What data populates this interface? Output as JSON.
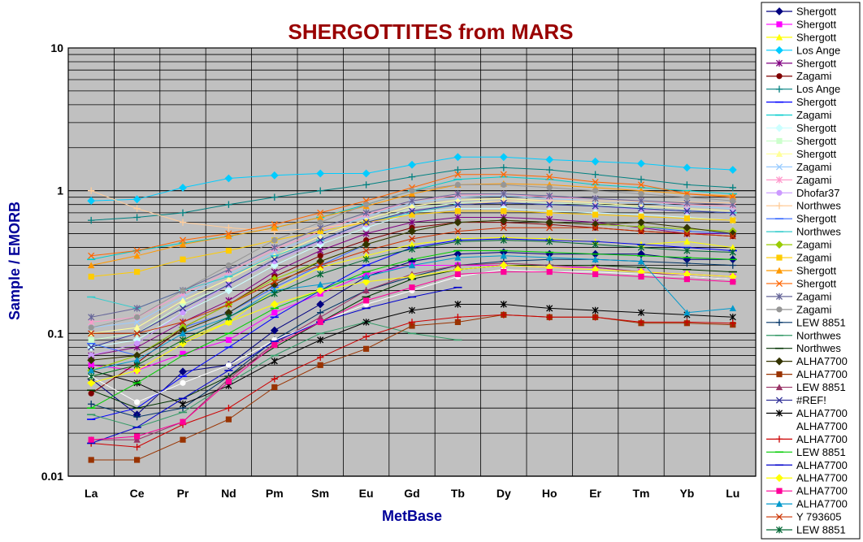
{
  "chart_data": {
    "type": "line",
    "title": "SHERGOTTITES from MARS",
    "xlabel": "MetBase",
    "ylabel": "Sample / EMORB",
    "yscale": "log",
    "ylim": [
      0.01,
      10
    ],
    "yticks": [
      "10",
      "1",
      "0.1",
      "0.01"
    ],
    "grid": true,
    "legend_position": "right",
    "categories": [
      "La",
      "Ce",
      "Pr",
      "Nd",
      "Pm",
      "Sm",
      "Eu",
      "Gd",
      "Tb",
      "Dy",
      "Ho",
      "Er",
      "Tm",
      "Yb",
      "Lu"
    ],
    "series": [
      {
        "name": "Shergott",
        "color": "#000080",
        "marker": "diamond",
        "values": [
          0.048,
          0.027,
          0.054,
          0.06,
          0.105,
          0.16,
          0.25,
          0.32,
          0.36,
          0.37,
          0.36,
          0.36,
          0.36,
          0.33,
          0.33
        ]
      },
      {
        "name": "Shergott",
        "color": "#ff00ff",
        "marker": "square",
        "values": [
          0.06,
          0.055,
          0.072,
          0.09,
          0.14,
          0.19,
          0.26,
          0.3,
          0.3,
          0.3,
          0.29,
          0.29,
          0.27,
          0.26,
          0.25
        ]
      },
      {
        "name": "Shergott",
        "color": "#ffff00",
        "marker": "triangle",
        "values": [
          0.05,
          0.06,
          0.09,
          0.12,
          0.2,
          0.29,
          0.35,
          0.42,
          0.46,
          0.47,
          0.46,
          0.44,
          0.42,
          0.44,
          0.4
        ]
      },
      {
        "name": "Los Ange",
        "color": "#00ccff",
        "marker": "diamond",
        "values": [
          0.85,
          0.87,
          1.05,
          1.22,
          1.28,
          1.32,
          1.32,
          1.52,
          1.72,
          1.72,
          1.65,
          1.6,
          1.55,
          1.45,
          1.4
        ]
      },
      {
        "name": "Shergott",
        "color": "#800080",
        "marker": "star",
        "values": [
          0.07,
          0.08,
          0.12,
          0.17,
          0.27,
          0.38,
          0.5,
          0.6,
          0.65,
          0.65,
          0.63,
          0.6,
          0.55,
          0.5,
          0.5
        ]
      },
      {
        "name": "Zagami",
        "color": "#800000",
        "marker": "circle",
        "values": [
          0.038,
          0.062,
          0.11,
          0.16,
          0.25,
          0.35,
          0.45,
          0.55,
          0.6,
          0.6,
          0.58,
          0.55,
          0.52,
          0.5,
          0.48
        ]
      },
      {
        "name": "Los Ange",
        "color": "#008080",
        "marker": "plus",
        "values": [
          0.62,
          0.65,
          0.7,
          0.8,
          0.9,
          1.0,
          1.1,
          1.25,
          1.4,
          1.45,
          1.4,
          1.3,
          1.2,
          1.1,
          1.05
        ]
      },
      {
        "name": "Shergott",
        "color": "#0000ff",
        "marker": "dash",
        "values": [
          0.025,
          0.03,
          0.05,
          0.08,
          0.13,
          0.2,
          0.3,
          0.4,
          0.45,
          0.46,
          0.45,
          0.44,
          0.42,
          0.4,
          0.38
        ]
      },
      {
        "name": "Zagami",
        "color": "#00cccc",
        "marker": "dash",
        "values": [
          0.33,
          0.38,
          0.43,
          0.48,
          0.55,
          0.65,
          0.8,
          1.0,
          1.2,
          1.25,
          1.2,
          1.1,
          1.05,
          1.0,
          0.95
        ]
      },
      {
        "name": "Shergott",
        "color": "#ccffff",
        "marker": "diamond",
        "values": [
          0.08,
          0.09,
          0.14,
          0.2,
          0.3,
          0.42,
          0.55,
          0.7,
          0.75,
          0.75,
          0.72,
          0.7,
          0.68,
          0.65,
          0.62
        ]
      },
      {
        "name": "Shergott",
        "color": "#ccffcc",
        "marker": "square",
        "values": [
          0.09,
          0.1,
          0.16,
          0.22,
          0.33,
          0.45,
          0.6,
          0.75,
          0.82,
          0.85,
          0.82,
          0.8,
          0.76,
          0.72,
          0.7
        ]
      },
      {
        "name": "Shergott",
        "color": "#ffff99",
        "marker": "triangle",
        "values": [
          0.1,
          0.11,
          0.17,
          0.24,
          0.35,
          0.48,
          0.63,
          0.78,
          0.86,
          0.88,
          0.85,
          0.82,
          0.78,
          0.75,
          0.72
        ]
      },
      {
        "name": "Zagami",
        "color": "#99ccff",
        "marker": "x",
        "values": [
          0.11,
          0.12,
          0.18,
          0.26,
          0.37,
          0.5,
          0.66,
          0.82,
          0.9,
          0.92,
          0.88,
          0.85,
          0.82,
          0.78,
          0.75
        ]
      },
      {
        "name": "Zagami",
        "color": "#ff99cc",
        "marker": "star",
        "values": [
          0.12,
          0.13,
          0.19,
          0.27,
          0.39,
          0.52,
          0.68,
          0.85,
          0.93,
          0.95,
          0.9,
          0.88,
          0.85,
          0.8,
          0.78
        ]
      },
      {
        "name": "Dhofar37",
        "color": "#cc99ff",
        "marker": "circle",
        "values": [
          0.07,
          0.085,
          0.14,
          0.22,
          0.32,
          0.44,
          0.58,
          0.72,
          0.8,
          0.82,
          0.8,
          0.78,
          0.74,
          0.72,
          0.7
        ]
      },
      {
        "name": "Northwes",
        "color": "#ffcc99",
        "marker": "plus",
        "values": [
          1.0,
          0.75,
          0.6,
          0.55,
          0.52,
          0.55,
          0.6,
          0.7,
          0.8,
          0.85,
          0.85,
          0.85,
          0.84,
          0.83,
          0.82
        ]
      },
      {
        "name": "Shergott",
        "color": "#3366ff",
        "marker": "dash",
        "values": [
          0.085,
          0.07,
          0.11,
          0.14,
          0.21,
          0.3,
          0.42,
          0.52,
          0.6,
          0.62,
          0.6,
          0.58,
          0.56,
          0.52,
          0.5
        ]
      },
      {
        "name": "Northwes",
        "color": "#33cccc",
        "marker": "dash",
        "values": [
          0.18,
          0.15,
          0.2,
          0.25,
          0.35,
          0.45,
          0.6,
          0.7,
          0.8,
          0.82,
          0.8,
          0.78,
          0.75,
          0.72,
          0.7
        ]
      },
      {
        "name": "Zagami",
        "color": "#99cc00",
        "marker": "diamond",
        "values": [
          0.055,
          0.07,
          0.11,
          0.16,
          0.24,
          0.32,
          0.42,
          0.52,
          0.6,
          0.62,
          0.6,
          0.58,
          0.56,
          0.54,
          0.52
        ]
      },
      {
        "name": "Zagami",
        "color": "#ffcc00",
        "marker": "square",
        "values": [
          0.25,
          0.27,
          0.33,
          0.38,
          0.45,
          0.52,
          0.6,
          0.68,
          0.72,
          0.72,
          0.7,
          0.68,
          0.66,
          0.64,
          0.62
        ]
      },
      {
        "name": "Shergott",
        "color": "#ff9900",
        "marker": "triangle",
        "values": [
          0.3,
          0.35,
          0.42,
          0.48,
          0.55,
          0.65,
          0.78,
          0.95,
          1.1,
          1.12,
          1.1,
          1.05,
          1.0,
          0.95,
          0.92
        ]
      },
      {
        "name": "Shergott",
        "color": "#ff6600",
        "marker": "x",
        "values": [
          0.35,
          0.38,
          0.45,
          0.5,
          0.58,
          0.7,
          0.85,
          1.05,
          1.3,
          1.3,
          1.25,
          1.15,
          1.1,
          0.95,
          0.9
        ]
      },
      {
        "name": "Zagami",
        "color": "#666699",
        "marker": "star",
        "values": [
          0.13,
          0.15,
          0.2,
          0.28,
          0.4,
          0.55,
          0.7,
          0.85,
          0.95,
          0.95,
          0.92,
          0.88,
          0.85,
          0.82,
          0.8
        ]
      },
      {
        "name": "Zagami",
        "color": "#969696",
        "marker": "circle",
        "values": [
          0.11,
          0.13,
          0.2,
          0.3,
          0.45,
          0.6,
          0.8,
          1.0,
          1.1,
          1.1,
          1.05,
          1.0,
          0.95,
          0.9,
          0.85
        ]
      },
      {
        "name": "LEW 8851",
        "color": "#003366",
        "marker": "plus",
        "values": [
          0.032,
          0.026,
          0.03,
          0.05,
          0.09,
          0.14,
          0.2,
          0.25,
          0.3,
          0.32,
          0.33,
          0.33,
          0.32,
          0.31,
          0.3
        ]
      },
      {
        "name": "Northwes",
        "color": "#339966",
        "marker": "dash",
        "values": [
          0.027,
          0.022,
          0.028,
          0.045,
          0.07,
          0.1,
          0.12,
          0.1,
          0.09,
          null,
          null,
          null,
          null,
          null,
          null
        ]
      },
      {
        "name": "Northwes",
        "color": "#003300",
        "marker": "dash",
        "values": [
          0.04,
          0.03,
          0.035,
          0.05,
          0.08,
          0.12,
          0.18,
          0.24,
          0.28,
          0.3,
          0.3,
          0.3,
          0.29,
          0.28,
          0.27
        ]
      },
      {
        "name": "ALHA7700",
        "color": "#333300",
        "marker": "diamond",
        "values": [
          0.065,
          0.07,
          0.105,
          0.14,
          0.22,
          0.32,
          0.42,
          0.52,
          0.6,
          0.62,
          0.6,
          0.58,
          0.6,
          0.55,
          0.5
        ]
      },
      {
        "name": "ALHA7700",
        "color": "#993300",
        "marker": "square",
        "values": [
          0.013,
          0.013,
          0.018,
          0.025,
          0.042,
          0.06,
          0.078,
          0.113,
          0.12,
          0.135,
          0.13,
          0.13,
          0.118,
          0.118,
          0.115
        ]
      },
      {
        "name": "LEW 8851",
        "color": "#993366",
        "marker": "triangle",
        "values": [
          0.018,
          0.018,
          0.024,
          0.048,
          0.085,
          0.13,
          0.2,
          0.26,
          0.3,
          0.31,
          0.3,
          0.29,
          0.27,
          0.25,
          0.24
        ]
      },
      {
        "name": "#REF!",
        "color": "#333399",
        "marker": "x",
        "values": [
          0.08,
          0.1,
          0.15,
          0.22,
          0.33,
          0.45,
          0.6,
          0.72,
          0.8,
          0.82,
          0.8,
          0.78,
          0.75,
          0.72,
          0.7
        ]
      },
      {
        "name": "ALHA7700",
        "color": "#000000",
        "marker": "star",
        "values": [
          0.055,
          0.045,
          0.032,
          0.043,
          0.064,
          0.09,
          0.12,
          0.145,
          0.16,
          0.16,
          0.15,
          0.145,
          0.14,
          0.135,
          0.13
        ]
      },
      {
        "name": "ALHA7700",
        "color": "#ffffff",
        "marker": "circle",
        "values": [
          0.05,
          0.033,
          0.045,
          0.06,
          0.09,
          0.12,
          0.16,
          0.2,
          0.25,
          0.28,
          0.27,
          0.27,
          0.26,
          0.25,
          0.24
        ]
      },
      {
        "name": "ALHA7700",
        "color": "#cc0000",
        "marker": "plus",
        "values": [
          0.017,
          0.016,
          0.023,
          0.03,
          0.048,
          0.068,
          0.095,
          0.12,
          0.13,
          0.135,
          0.13,
          0.13,
          0.12,
          0.12,
          0.118
        ]
      },
      {
        "name": "LEW 8851",
        "color": "#00cc00",
        "marker": "dash",
        "values": [
          0.03,
          0.045,
          0.07,
          0.1,
          0.15,
          0.2,
          0.27,
          0.33,
          0.38,
          0.38,
          0.37,
          0.36,
          0.35,
          0.34,
          0.33
        ]
      },
      {
        "name": "ALHA7700",
        "color": "#0000cc",
        "marker": "dash",
        "values": [
          0.017,
          0.022,
          0.035,
          0.055,
          0.088,
          0.12,
          0.15,
          0.18,
          0.21,
          null,
          null,
          null,
          null,
          null,
          null
        ]
      },
      {
        "name": "ALHA7700",
        "color": "#ffff00",
        "marker": "diamond",
        "values": [
          0.045,
          0.055,
          0.085,
          0.12,
          0.16,
          0.2,
          0.23,
          0.25,
          0.28,
          0.3,
          0.29,
          0.28,
          0.27,
          0.26,
          0.25
        ]
      },
      {
        "name": "ALHA7700",
        "color": "#ff0099",
        "marker": "square",
        "values": [
          0.018,
          0.019,
          0.024,
          0.046,
          0.083,
          0.12,
          0.17,
          0.21,
          0.26,
          0.27,
          0.27,
          0.26,
          0.25,
          0.24,
          0.23
        ]
      },
      {
        "name": "ALHA7700",
        "color": "#0099cc",
        "marker": "triangle",
        "values": [
          0.055,
          0.065,
          0.1,
          0.13,
          0.2,
          0.22,
          0.25,
          0.3,
          0.34,
          0.35,
          0.34,
          0.33,
          0.32,
          0.14,
          0.15
        ]
      },
      {
        "name": "Y 793605",
        "color": "#cc3300",
        "marker": "x",
        "values": [
          0.1,
          0.1,
          0.12,
          0.16,
          0.23,
          0.3,
          0.38,
          0.46,
          0.52,
          0.55,
          0.55,
          0.55,
          0.52,
          0.5,
          0.48
        ]
      },
      {
        "name": "LEW 8851",
        "color": "#006633",
        "marker": "star",
        "values": [
          0.05,
          0.06,
          0.09,
          0.13,
          0.19,
          0.26,
          0.33,
          0.39,
          0.44,
          0.45,
          0.44,
          0.42,
          0.4,
          0.38,
          0.37
        ]
      }
    ]
  }
}
